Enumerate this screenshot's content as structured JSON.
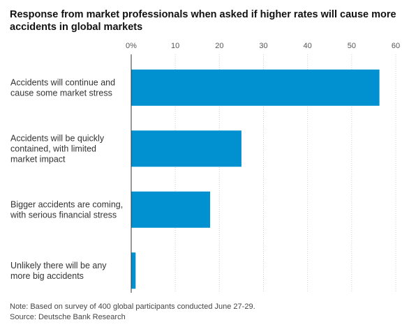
{
  "chart_data": {
    "type": "bar",
    "orientation": "horizontal",
    "title": "Response from market professionals when asked if higher rates will cause more accidents in global markets",
    "categories": [
      [
        "Accidents will continue and",
        "cause some market stress"
      ],
      [
        "Accidents will be quickly",
        "contained, with limited",
        "market impact"
      ],
      [
        "Bigger accidents are coming,",
        "with serious financial stress"
      ],
      [
        "Unlikely there will be any",
        "more big accidents"
      ]
    ],
    "values": [
      56.3,
      25,
      17.9,
      1
    ],
    "xlim": [
      0,
      60
    ],
    "ticks": [
      0,
      10,
      20,
      30,
      40,
      50,
      60
    ],
    "tick_labels": [
      "0%",
      "10",
      "20",
      "30",
      "40",
      "50",
      "60"
    ],
    "grid": true,
    "bar_color": "#0191d1",
    "note": "Note: Based on survey of 400 global participants conducted June 27-29.",
    "source": "Source: Deutsche Bank Research"
  }
}
